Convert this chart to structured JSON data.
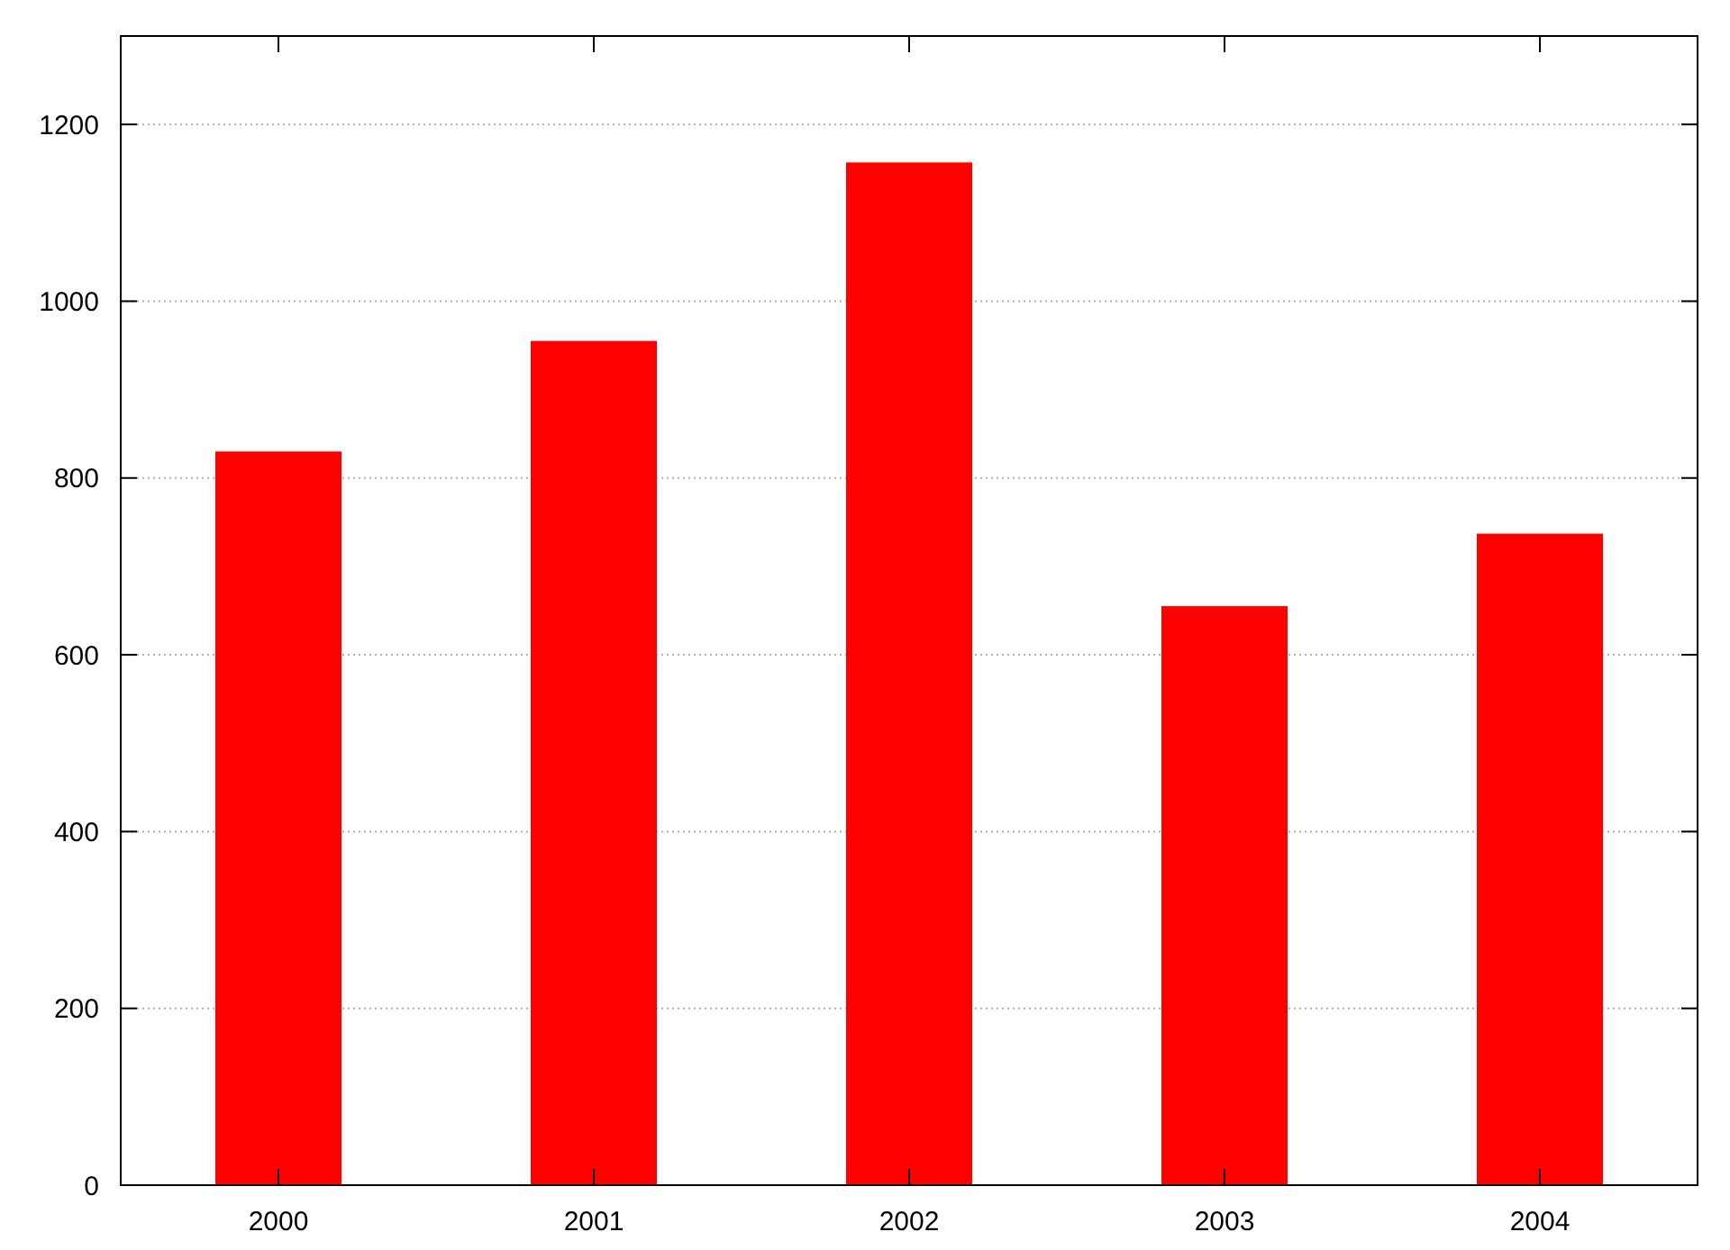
{
  "chart_data": {
    "type": "bar",
    "categories": [
      "2000",
      "2001",
      "2002",
      "2003",
      "2004"
    ],
    "values": [
      830,
      955,
      1157,
      655,
      737
    ],
    "color": "#ff0000",
    "ylim": [
      0,
      1300
    ],
    "yticks": [
      0,
      200,
      400,
      600,
      800,
      1000,
      1200
    ],
    "grid": "y"
  }
}
